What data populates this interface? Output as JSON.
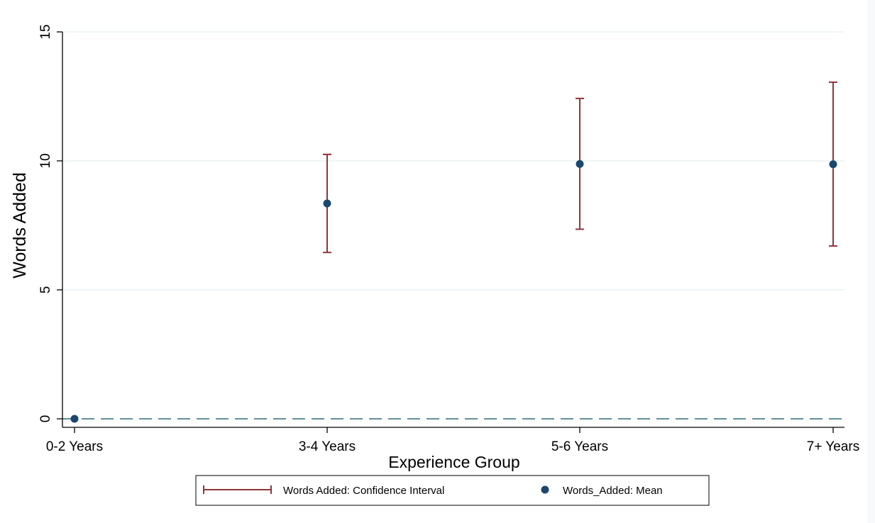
{
  "chart_data": {
    "type": "scatter",
    "title": "",
    "xlabel": "Experience Group",
    "ylabel": "Words Added",
    "categories": [
      "0-2 Years",
      "3-4 Years",
      "5-6 Years",
      "7+ Years"
    ],
    "ylim": [
      0,
      15
    ],
    "yticks": [
      0,
      5,
      10,
      15
    ],
    "grid": true,
    "reference_line": {
      "y": 0,
      "style": "dashed"
    },
    "series": [
      {
        "name": "Words_Added: Mean",
        "kind": "point",
        "values": [
          0,
          8.35,
          9.88,
          9.87
        ]
      },
      {
        "name": "Words Added: Confidence Interval",
        "kind": "errorbar",
        "lower": [
          null,
          6.45,
          7.35,
          6.7
        ],
        "upper": [
          null,
          10.25,
          12.42,
          13.05
        ]
      }
    ],
    "legend_position": "bottom-center",
    "colors": {
      "point": "#1a476f",
      "errorbar": "#90353b",
      "grid": "#eaf2f3",
      "refline": "#2d6b77"
    }
  }
}
